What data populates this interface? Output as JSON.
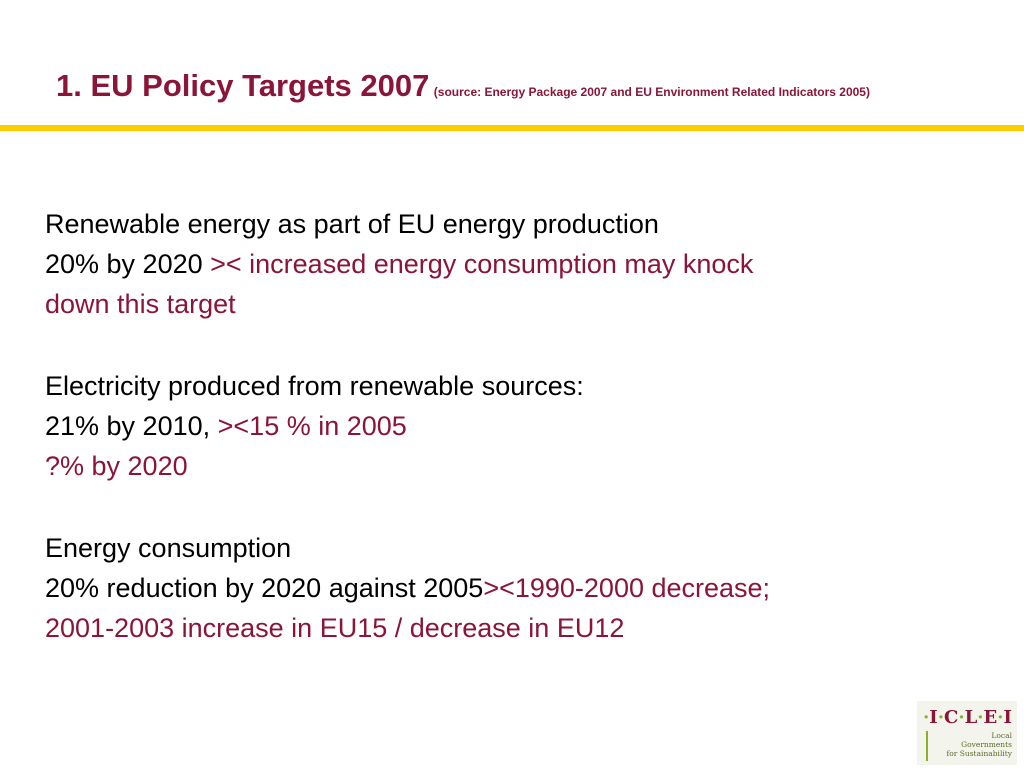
{
  "title": {
    "main": "1. EU Policy Targets 2007",
    "source": "(source: Energy Package 2007 and EU Environment Related Indicators 2005)"
  },
  "sections": [
    {
      "heading": "Renewable energy as part of EU energy production",
      "line2_black": "20% by 2020 ",
      "line2_red": ">< increased energy consumption may knock",
      "line3_red": "down this target"
    },
    {
      "heading": "Electricity produced from renewable sources:",
      "line2_black": "21% by 2010, ",
      "line2_red": "><15 % in 2005",
      "line3_red": "?% by 2020"
    },
    {
      "heading": "Energy consumption",
      "line2_black": "20% reduction by 2020 against 2005",
      "line2_red": "><1990-2000 decrease;",
      "line3_red": "2001-2003 increase in EU15 / decrease in EU12"
    }
  ],
  "logo": {
    "mark_parts": [
      "·",
      "I",
      "·",
      "C",
      "·",
      "L",
      "·",
      "E",
      "·",
      "I"
    ],
    "tagline": [
      "Local",
      "Governments",
      "for Sustainability"
    ]
  },
  "colors": {
    "accent_red": "#8b1538",
    "rule_yellow": "#ffcc00",
    "logo_green": "#8cae2a"
  }
}
